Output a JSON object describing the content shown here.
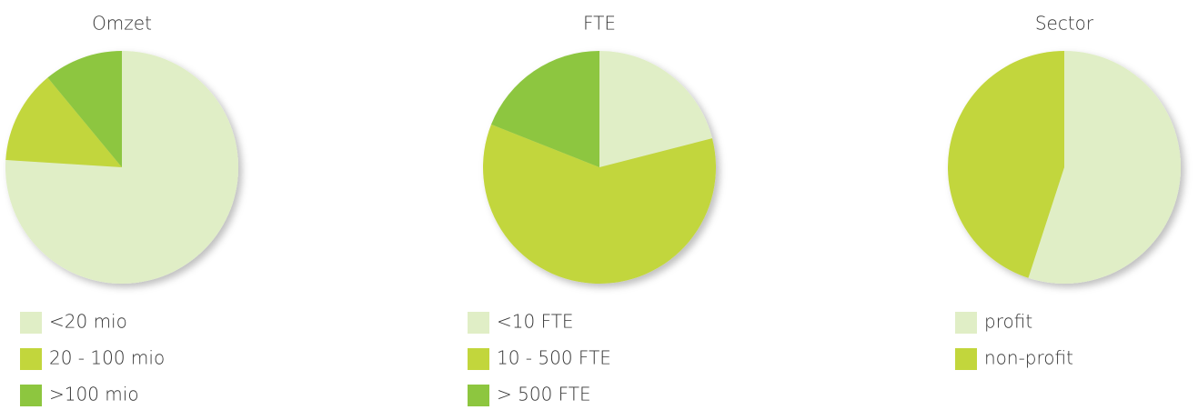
{
  "chart_data": [
    {
      "type": "pie",
      "title": "Omzet",
      "categories": [
        "<20 mio",
        "20 - 100 mio",
        ">100 mio"
      ],
      "values": [
        76,
        13,
        11
      ],
      "colors": [
        "#e0eec6",
        "#c2d63c",
        "#8dc63f"
      ]
    },
    {
      "type": "pie",
      "title": "FTE",
      "categories": [
        "<10 FTE",
        "10 - 500 FTE",
        " > 500 FTE"
      ],
      "values": [
        21,
        60,
        19
      ],
      "colors": [
        "#e0eec6",
        "#c2d63c",
        "#8dc63f"
      ]
    },
    {
      "type": "pie",
      "title": "Sector",
      "categories": [
        "profit",
        "non-profit"
      ],
      "values": [
        55,
        45
      ],
      "colors": [
        "#e0eec6",
        "#c2d63c"
      ]
    }
  ]
}
